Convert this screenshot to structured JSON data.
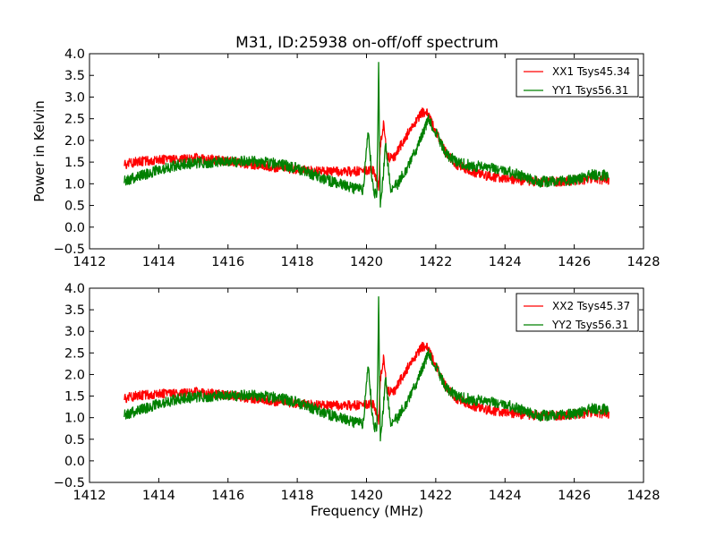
{
  "chart_data": [
    {
      "type": "line",
      "title": "M31, ID:25938 on-off/off spectrum",
      "xlabel": "",
      "ylabel": "Power in Kelvin",
      "xlim": [
        1412,
        1428
      ],
      "ylim": [
        -0.5,
        4.0
      ],
      "xticks": [
        "1412",
        "1414",
        "1416",
        "1418",
        "1420",
        "1422",
        "1424",
        "1426",
        "1428"
      ],
      "yticks": [
        "−0.5",
        "0.0",
        "0.5",
        "1.0",
        "1.5",
        "2.0",
        "2.5",
        "3.0",
        "3.5",
        "4.0"
      ],
      "legend_position": "top-right",
      "grid": false,
      "series": [
        {
          "name": "XX1 Tsys45.34",
          "color": "#ff0000",
          "x": [
            1413.0,
            1413.5,
            1414.0,
            1414.5,
            1415.0,
            1415.5,
            1416.0,
            1416.5,
            1417.0,
            1417.5,
            1418.0,
            1418.5,
            1419.0,
            1419.5,
            1420.0,
            1420.2,
            1420.35,
            1420.4,
            1420.5,
            1420.6,
            1420.8,
            1421.0,
            1421.3,
            1421.6,
            1421.8,
            1422.0,
            1422.3,
            1422.6,
            1423.0,
            1423.5,
            1424.0,
            1424.5,
            1425.0,
            1425.5,
            1426.0,
            1426.5,
            1427.0
          ],
          "y": [
            1.45,
            1.52,
            1.56,
            1.58,
            1.6,
            1.57,
            1.52,
            1.47,
            1.42,
            1.37,
            1.33,
            1.29,
            1.28,
            1.28,
            1.3,
            1.32,
            0.9,
            1.9,
            2.4,
            1.6,
            1.6,
            1.9,
            2.3,
            2.65,
            2.6,
            2.2,
            1.7,
            1.45,
            1.3,
            1.18,
            1.12,
            1.08,
            1.05,
            1.05,
            1.08,
            1.1,
            1.1
          ],
          "noise": 0.07
        },
        {
          "name": "YY1 Tsys56.31",
          "color": "#008000",
          "x": [
            1413.0,
            1413.5,
            1414.0,
            1414.5,
            1415.0,
            1415.5,
            1416.0,
            1416.5,
            1417.0,
            1417.5,
            1418.0,
            1418.5,
            1419.0,
            1419.5,
            1419.9,
            1420.05,
            1420.2,
            1420.3,
            1420.35,
            1420.4,
            1420.45,
            1420.55,
            1420.7,
            1420.9,
            1421.2,
            1421.5,
            1421.8,
            1422.0,
            1422.3,
            1422.6,
            1423.0,
            1423.5,
            1424.0,
            1424.5,
            1425.0,
            1425.5,
            1426.0,
            1426.5,
            1427.0
          ],
          "y": [
            1.05,
            1.2,
            1.32,
            1.42,
            1.48,
            1.5,
            1.5,
            1.52,
            1.5,
            1.45,
            1.35,
            1.2,
            1.05,
            0.92,
            0.85,
            2.2,
            0.8,
            0.8,
            3.7,
            0.4,
            0.9,
            1.9,
            0.9,
            1.0,
            1.4,
            1.9,
            2.5,
            2.2,
            1.7,
            1.5,
            1.42,
            1.38,
            1.3,
            1.18,
            1.05,
            1.05,
            1.1,
            1.2,
            1.2
          ],
          "noise": 0.08
        }
      ]
    },
    {
      "type": "line",
      "title": "",
      "xlabel": "Frequency (MHz)",
      "ylabel": "",
      "xlim": [
        1412,
        1428
      ],
      "ylim": [
        -0.5,
        4.0
      ],
      "xticks": [
        "1412",
        "1414",
        "1416",
        "1418",
        "1420",
        "1422",
        "1424",
        "1426",
        "1428"
      ],
      "yticks": [
        "−0.5",
        "0.0",
        "0.5",
        "1.0",
        "1.5",
        "2.0",
        "2.5",
        "3.0",
        "3.5",
        "4.0"
      ],
      "legend_position": "top-right",
      "grid": false,
      "series": [
        {
          "name": "XX2 Tsys45.37",
          "color": "#ff0000",
          "x": [
            1413.0,
            1413.5,
            1414.0,
            1414.5,
            1415.0,
            1415.5,
            1416.0,
            1416.5,
            1417.0,
            1417.5,
            1418.0,
            1418.5,
            1419.0,
            1419.5,
            1420.0,
            1420.2,
            1420.35,
            1420.4,
            1420.5,
            1420.6,
            1420.8,
            1421.0,
            1421.3,
            1421.6,
            1421.8,
            1422.0,
            1422.3,
            1422.6,
            1423.0,
            1423.5,
            1424.0,
            1424.5,
            1425.0,
            1425.5,
            1426.0,
            1426.5,
            1427.0
          ],
          "y": [
            1.45,
            1.52,
            1.56,
            1.58,
            1.6,
            1.57,
            1.52,
            1.47,
            1.42,
            1.37,
            1.33,
            1.29,
            1.28,
            1.28,
            1.3,
            1.32,
            0.9,
            1.9,
            2.4,
            1.6,
            1.6,
            1.9,
            2.3,
            2.65,
            2.6,
            2.2,
            1.7,
            1.45,
            1.3,
            1.18,
            1.12,
            1.08,
            1.05,
            1.05,
            1.08,
            1.1,
            1.1
          ],
          "noise": 0.07
        },
        {
          "name": "YY2 Tsys56.31",
          "color": "#008000",
          "x": [
            1413.0,
            1413.5,
            1414.0,
            1414.5,
            1415.0,
            1415.5,
            1416.0,
            1416.5,
            1417.0,
            1417.5,
            1418.0,
            1418.5,
            1419.0,
            1419.5,
            1419.9,
            1420.05,
            1420.2,
            1420.3,
            1420.35,
            1420.4,
            1420.45,
            1420.55,
            1420.7,
            1420.9,
            1421.2,
            1421.5,
            1421.8,
            1422.0,
            1422.3,
            1422.6,
            1423.0,
            1423.5,
            1424.0,
            1424.5,
            1425.0,
            1425.5,
            1426.0,
            1426.5,
            1427.0
          ],
          "y": [
            1.05,
            1.2,
            1.32,
            1.42,
            1.48,
            1.5,
            1.5,
            1.52,
            1.5,
            1.45,
            1.35,
            1.2,
            1.05,
            0.92,
            0.85,
            2.2,
            0.8,
            0.8,
            3.7,
            0.4,
            0.9,
            1.9,
            0.9,
            1.0,
            1.4,
            1.9,
            2.5,
            2.2,
            1.7,
            1.5,
            1.42,
            1.38,
            1.3,
            1.18,
            1.05,
            1.05,
            1.1,
            1.2,
            1.2
          ],
          "noise": 0.08
        }
      ]
    }
  ]
}
